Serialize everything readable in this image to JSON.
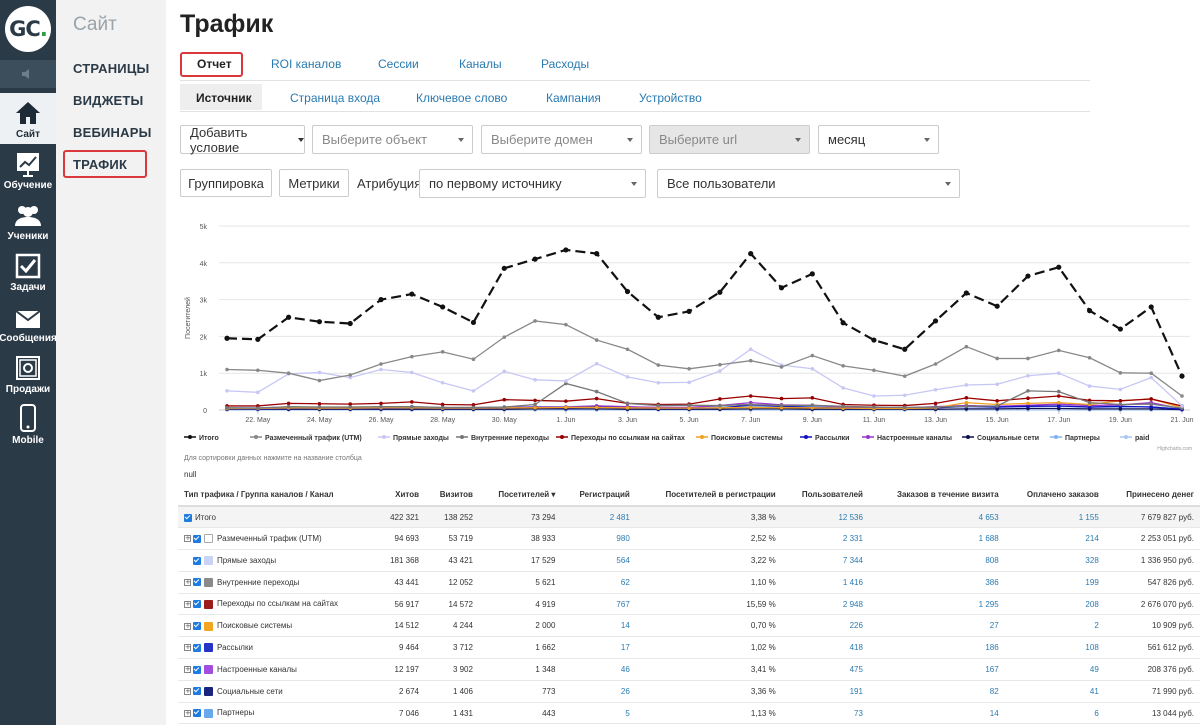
{
  "logo": {
    "text": "GC",
    "dot": "."
  },
  "nav": [
    {
      "label": "Сайт",
      "icon": "home-icon"
    },
    {
      "label": "Обучение",
      "icon": "chart-board-icon"
    },
    {
      "label": "Ученики",
      "icon": "users-icon"
    },
    {
      "label": "Задачи",
      "icon": "checkbox-icon"
    },
    {
      "label": "Сообщения",
      "icon": "envelope-icon"
    },
    {
      "label": "Продажи",
      "icon": "safe-icon"
    },
    {
      "label": "Mobile",
      "icon": "phone-icon"
    }
  ],
  "sub": {
    "title": "Сайт",
    "items": [
      "СТРАНИЦЫ",
      "ВИДЖЕТЫ",
      "ВЕБИНАРЫ",
      "ТРАФИК"
    ]
  },
  "page": {
    "title": "Трафик"
  },
  "tabs1": [
    "Отчет",
    "ROI каналов",
    "Сессии",
    "Каналы",
    "Расходы"
  ],
  "tabs2": [
    "Источник",
    "Страница входа",
    "Ключевое слово",
    "Кампания",
    "Устройство"
  ],
  "filters": {
    "add_condition": "Добавить условие",
    "object": "Выберите объект",
    "domain": "Выберите домен",
    "url": "Выберите url",
    "period": "месяц"
  },
  "controls": {
    "grouping": "Группировка",
    "metrics": "Метрики",
    "attribution_label": "Атрибуция",
    "attribution": "по первому источнику",
    "users": "Все пользователи"
  },
  "chart_data": {
    "type": "line",
    "ylabel": "Посетителей",
    "yticks": [
      "0",
      "1k",
      "2k",
      "3k",
      "4k",
      "5k"
    ],
    "ylim": [
      0,
      5000
    ],
    "xticks": [
      "22. May",
      "24. May",
      "26. May",
      "28. May",
      "30. May",
      "1. Jun",
      "3. Jun",
      "5. Jun",
      "7. Jun",
      "9. Jun",
      "11. Jun",
      "13. Jun",
      "15. Jun",
      "17. Jun",
      "19. Jun",
      "21. Jun"
    ],
    "credit": "Highcharts.com",
    "legend_position": "bottom",
    "series": [
      {
        "name": "Итого",
        "color": "#111111",
        "dash": true,
        "values": [
          1950,
          1920,
          2520,
          2400,
          2350,
          3000,
          3150,
          2800,
          2380,
          3850,
          4100,
          4350,
          4250,
          3220,
          2520,
          2680,
          3200,
          4250,
          3320,
          3700,
          2370,
          1900,
          1650,
          2420,
          3180,
          2820,
          3640,
          3880,
          2700,
          2200,
          2800,
          920
        ]
      },
      {
        "name": "Размеченный трафик (UTM)",
        "color": "#888888",
        "values": [
          1100,
          1080,
          1000,
          800,
          950,
          1250,
          1450,
          1580,
          1380,
          1980,
          2420,
          2320,
          1900,
          1650,
          1220,
          1120,
          1230,
          1340,
          1170,
          1480,
          1200,
          1080,
          920,
          1250,
          1720,
          1400,
          1400,
          1620,
          1420,
          1010,
          1000,
          380
        ]
      },
      {
        "name": "Прямые заходы",
        "color": "#c7c7f5",
        "values": [
          520,
          480,
          980,
          1020,
          880,
          1100,
          1020,
          740,
          520,
          1050,
          820,
          790,
          1260,
          900,
          740,
          750,
          1060,
          1650,
          1220,
          1120,
          600,
          380,
          400,
          550,
          680,
          700,
          930,
          1000,
          650,
          560,
          880,
          110
        ]
      },
      {
        "name": "Внутренние переходы",
        "color": "#777777",
        "values": [
          60,
          50,
          90,
          80,
          80,
          90,
          90,
          70,
          70,
          80,
          150,
          720,
          500,
          180,
          120,
          130,
          120,
          150,
          120,
          130,
          100,
          80,
          70,
          80,
          100,
          110,
          520,
          500,
          200,
          150,
          160,
          50
        ]
      },
      {
        "name": "Переходы по ссылкам на сайтах",
        "color": "#990000",
        "values": [
          110,
          110,
          180,
          170,
          160,
          180,
          220,
          150,
          140,
          280,
          260,
          240,
          310,
          180,
          150,
          160,
          300,
          380,
          310,
          330,
          150,
          130,
          120,
          180,
          330,
          250,
          320,
          380,
          260,
          250,
          300,
          110
        ]
      },
      {
        "name": "Поисковые системы",
        "color": "#f0a020",
        "values": [
          40,
          40,
          60,
          50,
          50,
          60,
          60,
          50,
          50,
          60,
          60,
          70,
          70,
          60,
          50,
          50,
          60,
          70,
          60,
          60,
          50,
          40,
          40,
          60,
          200,
          150,
          180,
          200,
          150,
          250,
          300,
          60
        ]
      },
      {
        "name": "Рассылки",
        "color": "#1010c0",
        "values": [
          30,
          30,
          40,
          40,
          40,
          40,
          50,
          40,
          40,
          50,
          60,
          60,
          80,
          60,
          40,
          40,
          50,
          140,
          100,
          70,
          50,
          40,
          40,
          60,
          100,
          80,
          100,
          110,
          80,
          100,
          80,
          20
        ]
      },
      {
        "name": "Настроенные каналы",
        "color": "#9933cc",
        "values": [
          50,
          50,
          70,
          70,
          70,
          70,
          80,
          60,
          60,
          70,
          80,
          80,
          110,
          90,
          70,
          70,
          120,
          200,
          140,
          130,
          80,
          60,
          60,
          90,
          120,
          100,
          130,
          160,
          120,
          140,
          200,
          30
        ]
      },
      {
        "name": "Социальные сети",
        "color": "#101050",
        "values": [
          20,
          20,
          20,
          20,
          20,
          20,
          20,
          20,
          20,
          20,
          30,
          30,
          30,
          20,
          20,
          20,
          20,
          30,
          30,
          20,
          20,
          20,
          20,
          20,
          30,
          30,
          40,
          40,
          30,
          30,
          30,
          10
        ]
      },
      {
        "name": "Партнеры",
        "color": "#7fb2f0",
        "values": [
          60,
          60,
          80,
          70,
          70,
          80,
          90,
          60,
          60,
          80,
          90,
          90,
          110,
          80,
          70,
          70,
          80,
          100,
          90,
          90,
          70,
          60,
          60,
          70,
          90,
          80,
          90,
          100,
          80,
          80,
          90,
          30
        ]
      },
      {
        "name": "paid",
        "color": "#a8c8f0",
        "values": [
          0,
          0,
          0,
          0,
          0,
          0,
          0,
          0,
          0,
          0,
          0,
          0,
          0,
          0,
          0,
          0,
          0,
          0,
          0,
          0,
          0,
          0,
          0,
          0,
          0,
          0,
          0,
          0,
          0,
          0,
          0,
          0
        ]
      }
    ]
  },
  "table_note": "Для сортировки данных нажмите на название столбца",
  "null_text": "null",
  "table": {
    "headers": [
      "Тип трафика / Группа каналов / Канал",
      "Хитов",
      "Визитов",
      "Посетителей ▾",
      "Регистраций",
      "Посетителей в регистрации",
      "Пользователей",
      "Заказов в течение визита",
      "Оплачено заказов",
      "Принесено денег"
    ],
    "rows": [
      {
        "name": "Итого",
        "kind": "total",
        "icon": "",
        "values": [
          "422 321",
          "138 252",
          "73 294",
          "2 481",
          "3,38 %",
          "12 536",
          "4 653",
          "1 155",
          "7 679 827 руб."
        ]
      },
      {
        "name": "Размеченный трафик (UTM)",
        "kind": "expand",
        "icon": "list-icon",
        "icolor": "#ffffff",
        "values": [
          "94 693",
          "53 719",
          "38 933",
          "980",
          "2,52 %",
          "2 331",
          "1 688",
          "214",
          "2 253 051 руб."
        ]
      },
      {
        "name": "Прямые заходы",
        "kind": "plain",
        "icon": "direct-icon",
        "icolor": "#c9d3f5",
        "values": [
          "181 368",
          "43 421",
          "17 529",
          "564",
          "3,22 %",
          "7 344",
          "808",
          "328",
          "1 336 950 руб."
        ]
      },
      {
        "name": "Внутренние переходы",
        "kind": "expand",
        "icon": "internal-icon",
        "icolor": "#8a8a8a",
        "values": [
          "43 441",
          "12 052",
          "5 621",
          "62",
          "1,10 %",
          "1 416",
          "386",
          "199",
          "547 826 руб."
        ]
      },
      {
        "name": "Переходы по ссылкам на сайтах",
        "kind": "expand",
        "icon": "link-icon",
        "icolor": "#9c1c1c",
        "values": [
          "56 917",
          "14 572",
          "4 919",
          "767",
          "15,59 %",
          "2 948",
          "1 295",
          "208",
          "2 676 070 руб."
        ]
      },
      {
        "name": "Поисковые системы",
        "kind": "expand",
        "icon": "search-engine-icon",
        "icolor": "#f4a521",
        "values": [
          "14 512",
          "4 244",
          "2 000",
          "14",
          "0,70 %",
          "226",
          "27",
          "2",
          "10 909 руб."
        ]
      },
      {
        "name": "Рассылки",
        "kind": "expand",
        "icon": "mail-icon",
        "icolor": "#2434c8",
        "values": [
          "9 464",
          "3 712",
          "1 662",
          "17",
          "1,02 %",
          "418",
          "186",
          "108",
          "561 612 руб."
        ]
      },
      {
        "name": "Настроенные каналы",
        "kind": "expand",
        "icon": "custom-channel-icon",
        "icolor": "#a14ee0",
        "values": [
          "12 197",
          "3 902",
          "1 348",
          "46",
          "3,41 %",
          "475",
          "167",
          "49",
          "208 376 руб."
        ]
      },
      {
        "name": "Социальные сети",
        "kind": "expand",
        "icon": "social-icon",
        "icolor": "#1a237e",
        "values": [
          "2 674",
          "1 406",
          "773",
          "26",
          "3,36 %",
          "191",
          "82",
          "41",
          "71 990 руб."
        ]
      },
      {
        "name": "Партнеры",
        "kind": "expand",
        "icon": "partners-icon",
        "icolor": "#6aa8ee",
        "values": [
          "7 046",
          "1 431",
          "443",
          "5",
          "1,13 %",
          "73",
          "14",
          "6",
          "13 044 руб."
        ]
      }
    ]
  }
}
